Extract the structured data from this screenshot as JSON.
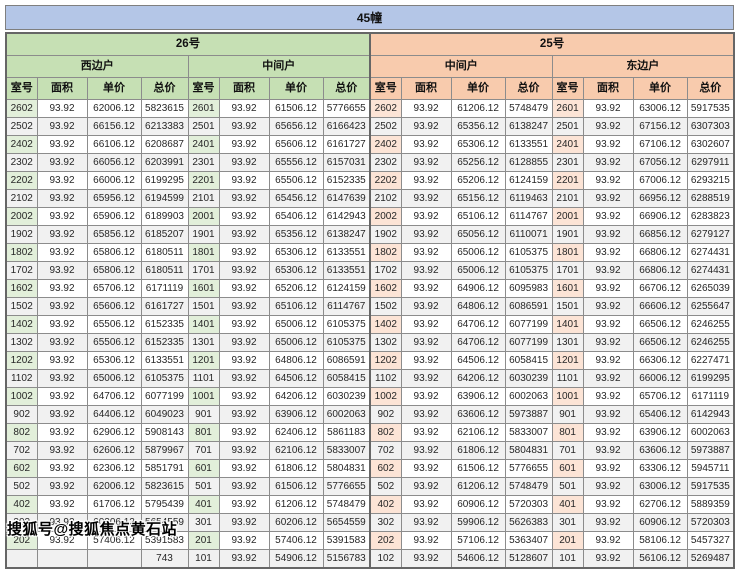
{
  "title": "45幢",
  "watermark": "搜狐号@搜狐焦点黄石站",
  "colors": {
    "title_bg": "#b4c6e7",
    "building_26_bg": "#c6e0b4",
    "building_25_bg": "#f8cbad",
    "room_col_26_bg": "#e2efda",
    "room_col_25_bg": "#fce4d6",
    "stripe_bg": "#f1f1f1",
    "border": "#8c8c8c"
  },
  "chart_data": {
    "type": "table",
    "title": "45幢",
    "buildings": [
      {
        "name": "26号",
        "units": [
          "西边户",
          "中间户"
        ]
      },
      {
        "name": "25号",
        "units": [
          "中间户",
          "东边户"
        ]
      }
    ],
    "columns": [
      "室号",
      "面积",
      "单价",
      "总价"
    ],
    "covered_row_visible_fragment": "743",
    "rows": [
      [
        [
          "2602",
          "93.92",
          "62006.12",
          "5823615"
        ],
        [
          "2601",
          "93.92",
          "61506.12",
          "5776655"
        ],
        [
          "2602",
          "93.92",
          "61206.12",
          "5748479"
        ],
        [
          "2601",
          "93.92",
          "63006.12",
          "5917535"
        ]
      ],
      [
        [
          "2502",
          "93.92",
          "66156.12",
          "6213383"
        ],
        [
          "2501",
          "93.92",
          "65656.12",
          "6166423"
        ],
        [
          "2502",
          "93.92",
          "65356.12",
          "6138247"
        ],
        [
          "2501",
          "93.92",
          "67156.12",
          "6307303"
        ]
      ],
      [
        [
          "2402",
          "93.92",
          "66106.12",
          "6208687"
        ],
        [
          "2401",
          "93.92",
          "65606.12",
          "6161727"
        ],
        [
          "2402",
          "93.92",
          "65306.12",
          "6133551"
        ],
        [
          "2401",
          "93.92",
          "67106.12",
          "6302607"
        ]
      ],
      [
        [
          "2302",
          "93.92",
          "66056.12",
          "6203991"
        ],
        [
          "2301",
          "93.92",
          "65556.12",
          "6157031"
        ],
        [
          "2302",
          "93.92",
          "65256.12",
          "6128855"
        ],
        [
          "2301",
          "93.92",
          "67056.12",
          "6297911"
        ]
      ],
      [
        [
          "2202",
          "93.92",
          "66006.12",
          "6199295"
        ],
        [
          "2201",
          "93.92",
          "65506.12",
          "6152335"
        ],
        [
          "2202",
          "93.92",
          "65206.12",
          "6124159"
        ],
        [
          "2201",
          "93.92",
          "67006.12",
          "6293215"
        ]
      ],
      [
        [
          "2102",
          "93.92",
          "65956.12",
          "6194599"
        ],
        [
          "2101",
          "93.92",
          "65456.12",
          "6147639"
        ],
        [
          "2102",
          "93.92",
          "65156.12",
          "6119463"
        ],
        [
          "2101",
          "93.92",
          "66956.12",
          "6288519"
        ]
      ],
      [
        [
          "2002",
          "93.92",
          "65906.12",
          "6189903"
        ],
        [
          "2001",
          "93.92",
          "65406.12",
          "6142943"
        ],
        [
          "2002",
          "93.92",
          "65106.12",
          "6114767"
        ],
        [
          "2001",
          "93.92",
          "66906.12",
          "6283823"
        ]
      ],
      [
        [
          "1902",
          "93.92",
          "65856.12",
          "6185207"
        ],
        [
          "1901",
          "93.92",
          "65356.12",
          "6138247"
        ],
        [
          "1902",
          "93.92",
          "65056.12",
          "6110071"
        ],
        [
          "1901",
          "93.92",
          "66856.12",
          "6279127"
        ]
      ],
      [
        [
          "1802",
          "93.92",
          "65806.12",
          "6180511"
        ],
        [
          "1801",
          "93.92",
          "65306.12",
          "6133551"
        ],
        [
          "1802",
          "93.92",
          "65006.12",
          "6105375"
        ],
        [
          "1801",
          "93.92",
          "66806.12",
          "6274431"
        ]
      ],
      [
        [
          "1702",
          "93.92",
          "65806.12",
          "6180511"
        ],
        [
          "1701",
          "93.92",
          "65306.12",
          "6133551"
        ],
        [
          "1702",
          "93.92",
          "65006.12",
          "6105375"
        ],
        [
          "1701",
          "93.92",
          "66806.12",
          "6274431"
        ]
      ],
      [
        [
          "1602",
          "93.92",
          "65706.12",
          "6171119"
        ],
        [
          "1601",
          "93.92",
          "65206.12",
          "6124159"
        ],
        [
          "1602",
          "93.92",
          "64906.12",
          "6095983"
        ],
        [
          "1601",
          "93.92",
          "66706.12",
          "6265039"
        ]
      ],
      [
        [
          "1502",
          "93.92",
          "65606.12",
          "6161727"
        ],
        [
          "1501",
          "93.92",
          "65106.12",
          "6114767"
        ],
        [
          "1502",
          "93.92",
          "64806.12",
          "6086591"
        ],
        [
          "1501",
          "93.92",
          "66606.12",
          "6255647"
        ]
      ],
      [
        [
          "1402",
          "93.92",
          "65506.12",
          "6152335"
        ],
        [
          "1401",
          "93.92",
          "65006.12",
          "6105375"
        ],
        [
          "1402",
          "93.92",
          "64706.12",
          "6077199"
        ],
        [
          "1401",
          "93.92",
          "66506.12",
          "6246255"
        ]
      ],
      [
        [
          "1302",
          "93.92",
          "65506.12",
          "6152335"
        ],
        [
          "1301",
          "93.92",
          "65006.12",
          "6105375"
        ],
        [
          "1302",
          "93.92",
          "64706.12",
          "6077199"
        ],
        [
          "1301",
          "93.92",
          "66506.12",
          "6246255"
        ]
      ],
      [
        [
          "1202",
          "93.92",
          "65306.12",
          "6133551"
        ],
        [
          "1201",
          "93.92",
          "64806.12",
          "6086591"
        ],
        [
          "1202",
          "93.92",
          "64506.12",
          "6058415"
        ],
        [
          "1201",
          "93.92",
          "66306.12",
          "6227471"
        ]
      ],
      [
        [
          "1102",
          "93.92",
          "65006.12",
          "6105375"
        ],
        [
          "1101",
          "93.92",
          "64506.12",
          "6058415"
        ],
        [
          "1102",
          "93.92",
          "64206.12",
          "6030239"
        ],
        [
          "1101",
          "93.92",
          "66006.12",
          "6199295"
        ]
      ],
      [
        [
          "1002",
          "93.92",
          "64706.12",
          "6077199"
        ],
        [
          "1001",
          "93.92",
          "64206.12",
          "6030239"
        ],
        [
          "1002",
          "93.92",
          "63906.12",
          "6002063"
        ],
        [
          "1001",
          "93.92",
          "65706.12",
          "6171119"
        ]
      ],
      [
        [
          "902",
          "93.92",
          "64406.12",
          "6049023"
        ],
        [
          "901",
          "93.92",
          "63906.12",
          "6002063"
        ],
        [
          "902",
          "93.92",
          "63606.12",
          "5973887"
        ],
        [
          "901",
          "93.92",
          "65406.12",
          "6142943"
        ]
      ],
      [
        [
          "802",
          "93.92",
          "62906.12",
          "5908143"
        ],
        [
          "801",
          "93.92",
          "62406.12",
          "5861183"
        ],
        [
          "802",
          "93.92",
          "62106.12",
          "5833007"
        ],
        [
          "801",
          "93.92",
          "63906.12",
          "6002063"
        ]
      ],
      [
        [
          "702",
          "93.92",
          "62606.12",
          "5879967"
        ],
        [
          "701",
          "93.92",
          "62106.12",
          "5833007"
        ],
        [
          "702",
          "93.92",
          "61806.12",
          "5804831"
        ],
        [
          "701",
          "93.92",
          "63606.12",
          "5973887"
        ]
      ],
      [
        [
          "602",
          "93.92",
          "62306.12",
          "5851791"
        ],
        [
          "601",
          "93.92",
          "61806.12",
          "5804831"
        ],
        [
          "602",
          "93.92",
          "61506.12",
          "5776655"
        ],
        [
          "601",
          "93.92",
          "63306.12",
          "5945711"
        ]
      ],
      [
        [
          "502",
          "93.92",
          "62006.12",
          "5823615"
        ],
        [
          "501",
          "93.92",
          "61506.12",
          "5776655"
        ],
        [
          "502",
          "93.92",
          "61206.12",
          "5748479"
        ],
        [
          "501",
          "93.92",
          "63006.12",
          "5917535"
        ]
      ],
      [
        [
          "402",
          "93.92",
          "61706.12",
          "5795439"
        ],
        [
          "401",
          "93.92",
          "61206.12",
          "5748479"
        ],
        [
          "402",
          "93.92",
          "60906.12",
          "5720303"
        ],
        [
          "401",
          "93.92",
          "62706.12",
          "5889359"
        ]
      ],
      [
        [
          "302",
          "93.92",
          "60206.12",
          "5654559"
        ],
        [
          "301",
          "93.92",
          "60206.12",
          "5654559"
        ],
        [
          "302",
          "93.92",
          "59906.12",
          "5626383"
        ],
        [
          "301",
          "93.92",
          "60906.12",
          "5720303"
        ]
      ],
      [
        [
          "202",
          "93.92",
          "57406.12",
          "5391583"
        ],
        [
          "201",
          "93.92",
          "57406.12",
          "5391583"
        ],
        [
          "202",
          "93.92",
          "57106.12",
          "5363407"
        ],
        [
          "201",
          "93.92",
          "58106.12",
          "5457327"
        ]
      ],
      [
        [
          "",
          "",
          "",
          "743"
        ],
        [
          "101",
          "93.92",
          "54906.12",
          "5156783"
        ],
        [
          "102",
          "93.92",
          "54606.12",
          "5128607"
        ],
        [
          "101",
          "93.92",
          "56106.12",
          "5269487"
        ]
      ]
    ]
  }
}
